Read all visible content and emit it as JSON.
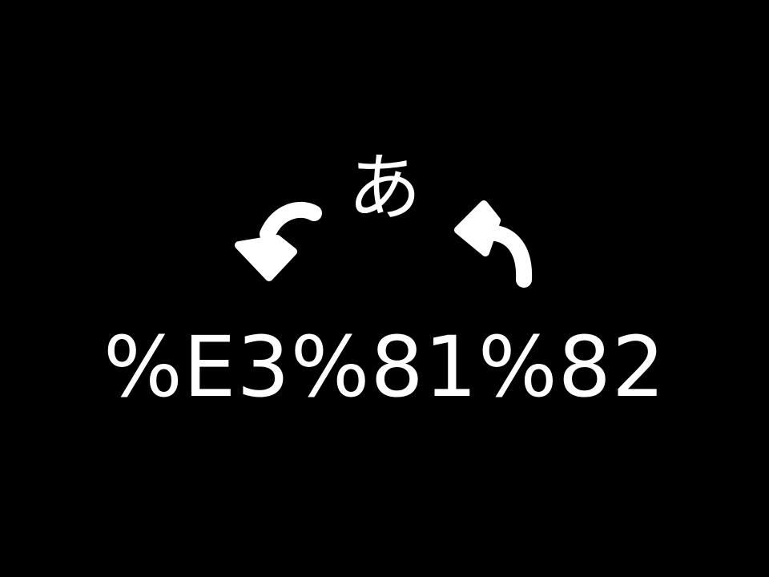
{
  "character": "あ",
  "encoded_text": "%E3%81%82",
  "icons": {
    "left_arrow": "curved-arrow-down-left-icon",
    "right_arrow": "curved-arrow-up-left-icon"
  },
  "colors": {
    "background": "#000000",
    "foreground": "#ffffff"
  }
}
